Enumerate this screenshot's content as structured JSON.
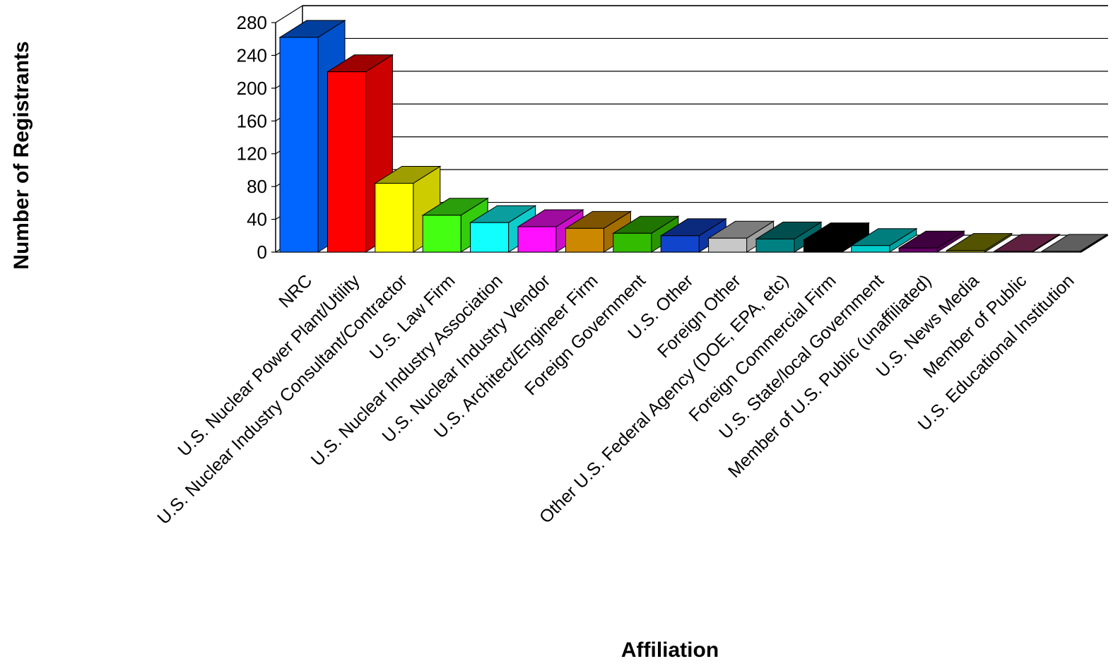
{
  "chart_data": {
    "type": "bar",
    "style": "3d",
    "title": "",
    "xlabel": "Affiliation",
    "ylabel": "Number of Registrants",
    "ylim": [
      0,
      280
    ],
    "yticks": [
      0,
      40,
      80,
      120,
      160,
      200,
      240,
      280
    ],
    "grid": true,
    "legend": "none",
    "categories": [
      "NRC",
      "U.S. Nuclear Power Plant/Utility",
      "U.S. Nuclear Industry Consultant/Contractor",
      "U.S. Law Firm",
      "U.S. Nuclear Industry Association",
      "U.S. Nuclear Industry Vendor",
      "U.S. Architect/Engineer Firm",
      "Foreign Government",
      "U.S. Other",
      "Foreign Other",
      "Other U.S. Federal Agency (DOE, EPA, etc)",
      "Foreign Commercial Firm",
      "U.S. State/local Government",
      "Member of U.S. Public (unaffiliated)",
      "U.S. News Media",
      "Member of Public",
      "U.S. Educational Institution"
    ],
    "values": [
      262,
      220,
      84,
      45,
      36,
      31,
      29,
      23,
      20,
      17,
      16,
      15,
      8,
      5,
      2,
      1,
      1
    ],
    "colors": [
      "#0066ff",
      "#ff0000",
      "#ffff00",
      "#44ff11",
      "#11ffff",
      "#ff11ff",
      "#cc8800",
      "#33bb00",
      "#1144cc",
      "#c8c8c8",
      "#008080",
      "#000000",
      "#00cccc",
      "#660066",
      "#888800",
      "#993366",
      "#999999"
    ]
  }
}
